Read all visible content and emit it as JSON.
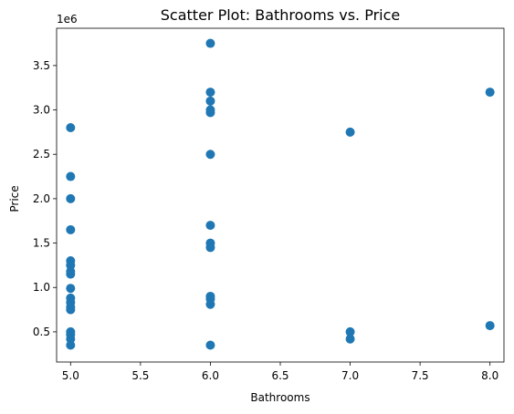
{
  "chart_data": {
    "type": "scatter",
    "title": "Scatter Plot: Bathrooms vs. Price",
    "xlabel": "Bathrooms",
    "ylabel": "Price",
    "y_offset_label": "1e6",
    "xlim": [
      4.9,
      8.1
    ],
    "ylim": [
      160000,
      3920000
    ],
    "xticks": [
      5.0,
      5.5,
      6.0,
      6.5,
      7.0,
      7.5,
      8.0
    ],
    "xtick_labels": [
      "5.0",
      "5.5",
      "6.0",
      "6.5",
      "7.0",
      "7.5",
      "8.0"
    ],
    "yticks": [
      500000,
      1000000,
      1500000,
      2000000,
      2500000,
      3000000,
      3500000
    ],
    "ytick_labels": [
      "0.5",
      "1.0",
      "1.5",
      "2.0",
      "2.5",
      "3.0",
      "3.5"
    ],
    "grid": false,
    "marker_color": "#1f77b4",
    "series": [
      {
        "points": [
          {
            "x": 5,
            "y": 2800000
          },
          {
            "x": 5,
            "y": 2250000
          },
          {
            "x": 5,
            "y": 2000000
          },
          {
            "x": 5,
            "y": 1650000
          },
          {
            "x": 5,
            "y": 1300000
          },
          {
            "x": 5,
            "y": 1250000
          },
          {
            "x": 5,
            "y": 1180000
          },
          {
            "x": 5,
            "y": 1150000
          },
          {
            "x": 5,
            "y": 990000
          },
          {
            "x": 5,
            "y": 880000
          },
          {
            "x": 5,
            "y": 830000
          },
          {
            "x": 5,
            "y": 780000
          },
          {
            "x": 5,
            "y": 750000
          },
          {
            "x": 5,
            "y": 500000
          },
          {
            "x": 5,
            "y": 470000
          },
          {
            "x": 5,
            "y": 420000
          },
          {
            "x": 5,
            "y": 350000
          },
          {
            "x": 6,
            "y": 3750000
          },
          {
            "x": 6,
            "y": 3200000
          },
          {
            "x": 6,
            "y": 3100000
          },
          {
            "x": 6,
            "y": 3000000
          },
          {
            "x": 6,
            "y": 2970000
          },
          {
            "x": 6,
            "y": 2500000
          },
          {
            "x": 6,
            "y": 1700000
          },
          {
            "x": 6,
            "y": 1500000
          },
          {
            "x": 6,
            "y": 1450000
          },
          {
            "x": 6,
            "y": 900000
          },
          {
            "x": 6,
            "y": 870000
          },
          {
            "x": 6,
            "y": 810000
          },
          {
            "x": 6,
            "y": 350000
          },
          {
            "x": 7,
            "y": 2750000
          },
          {
            "x": 7,
            "y": 500000
          },
          {
            "x": 7,
            "y": 420000
          },
          {
            "x": 8,
            "y": 3200000
          },
          {
            "x": 8,
            "y": 570000
          }
        ]
      }
    ]
  }
}
